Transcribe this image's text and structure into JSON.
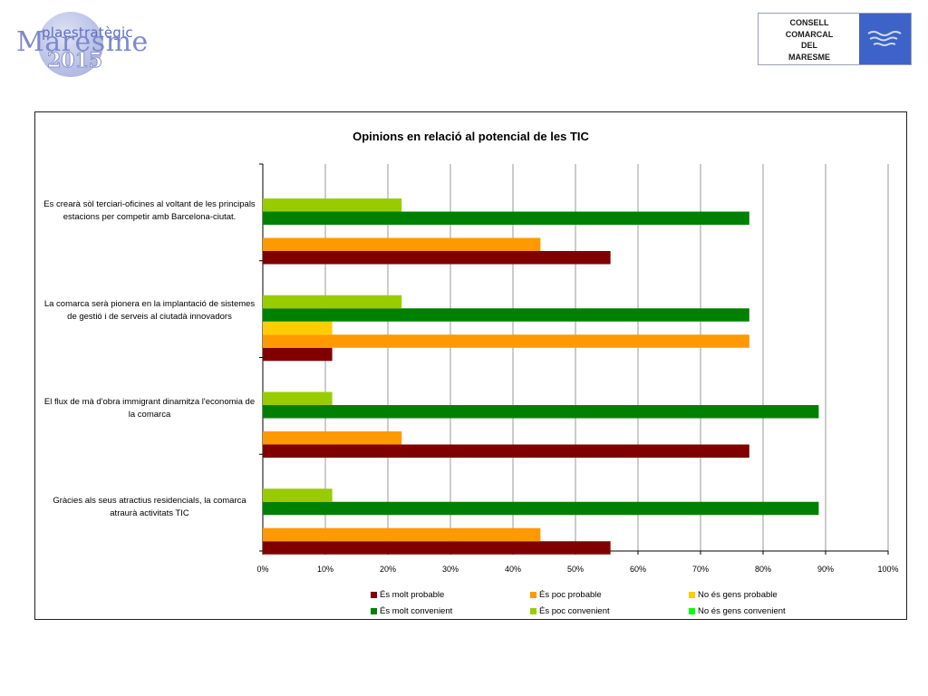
{
  "header": {
    "logo_left": {
      "small_text": "plaestratègic",
      "big_text": "Maresme",
      "year": "2015"
    },
    "logo_right": {
      "lines": [
        "CONSELL",
        "COMARCAL",
        "DEL",
        "MARESME"
      ],
      "badge_color": "#3d63c9"
    }
  },
  "chart_data": {
    "type": "bar",
    "orientation": "horizontal",
    "title": "Opinions en relació al potencial de les TIC",
    "xlabel": "",
    "ylabel": "",
    "xlim": [
      0,
      100
    ],
    "x_ticks": [
      "0%",
      "10%",
      "20%",
      "30%",
      "40%",
      "50%",
      "60%",
      "70%",
      "80%",
      "90%",
      "100%"
    ],
    "grid": "vertical",
    "legend_position": "bottom",
    "categories": [
      "Es crearà sòl terciari-oficines al voltant de les principals estacions per competir amb Barcelona-ciutat.",
      "La comarca serà pionera en la implantació de sistemes de gestió i de serveis al ciutadà innovadors",
      "El flux de mà d'obra immigrant dinamitza l'economia de la comarca",
      "Gràcies als seus atractius residencials, la comarca atraurà activitats TIC"
    ],
    "series": [
      {
        "name": "És molt probable",
        "color": "#800000",
        "values": [
          55.6,
          11.1,
          77.8,
          55.6
        ]
      },
      {
        "name": "És poc probable",
        "color": "#ff9900",
        "values": [
          44.4,
          77.8,
          22.2,
          44.4
        ]
      },
      {
        "name": "No és gens probable",
        "color": "#ffcc00",
        "values": [
          0,
          11.1,
          0,
          0
        ]
      },
      {
        "name": "És molt convenient",
        "color": "#008000",
        "values": [
          77.8,
          77.8,
          88.9,
          88.9
        ]
      },
      {
        "name": "És poc convenient",
        "color": "#99cc00",
        "values": [
          22.2,
          22.2,
          11.1,
          11.1
        ]
      },
      {
        "name": "No és gens convenient",
        "color": "#00ff00",
        "values": [
          0,
          0,
          0,
          0
        ]
      }
    ]
  }
}
